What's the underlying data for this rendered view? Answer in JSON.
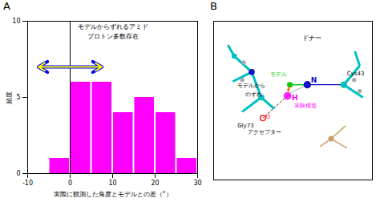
{
  "chart_data": [
    {
      "type": "histogram",
      "title": "A",
      "bins": [
        -10,
        -5,
        0,
        5,
        10,
        15,
        20,
        25,
        30
      ],
      "values": [
        0,
        1,
        6,
        6,
        4,
        5,
        4,
        1
      ],
      "color": "#FF00FF",
      "xlim": [
        -10,
        30
      ],
      "ylim": [
        0,
        10
      ],
      "xticks": [
        -10,
        0,
        10,
        20,
        30
      ],
      "yticks": [
        0,
        5,
        10
      ],
      "xlabel": "実際に観測した角度とモデルとの差（°）",
      "ylabel": "頻度",
      "annotations": [
        "モデルからずれるアミド",
        "プロトン多数存在"
      ],
      "vline_x": 0,
      "arrows": [
        {
          "x1": 0,
          "x2": -7.5,
          "y": 7.0
        },
        {
          "x1": 0,
          "x2": 7.5,
          "y": 7.0
        }
      ],
      "arrow_color": "#FFFF00",
      "arrow_edge_color": "#0000FF"
    },
    {
      "type": "diagram",
      "title": "B",
      "annotations": [
        "N",
        "H",
        "O",
        "実験構造",
        "モデル",
        "ドナー",
        "Cys43",
        "Gly73",
        "アクセプター",
        "モデルから",
        "のずれ"
      ],
      "colors": [
        "#00BFBF",
        "#1010CC",
        "#FF00FF",
        "#00CC00",
        "#FF2020",
        "#FF6600",
        "#AAAAAA",
        "#C8A068"
      ]
    }
  ]
}
